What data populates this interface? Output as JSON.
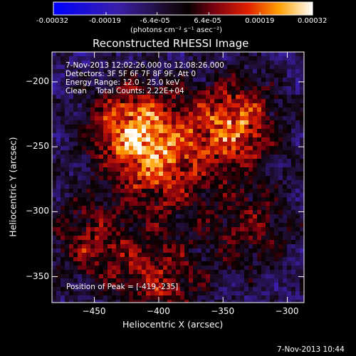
{
  "colorbar": {
    "tick_labels": [
      "-0.00032",
      "-0.00019",
      "-6.4e-05",
      "6.4e-05",
      "0.00019",
      "0.00032"
    ],
    "units_label": "(photons cm⁻² s⁻¹ asec⁻²)",
    "range": [
      -0.00032,
      0.00032
    ]
  },
  "chart_data": {
    "type": "heatmap",
    "title": "Reconstructed RHESSI Image",
    "xlabel": "Heliocentric X (arcsec)",
    "ylabel": "Heliocentric Y (arcsec)",
    "xlim": [
      -483,
      -287
    ],
    "ylim": [
      -370,
      -177
    ],
    "x_ticks": [
      -450,
      -400,
      -350,
      -300
    ],
    "y_ticks": [
      -200,
      -250,
      -300,
      -350
    ],
    "colormap": "blue-black-red-yellow-white",
    "color_range": [
      -0.00032,
      0.00032
    ],
    "sources": [
      {
        "x": -420,
        "y": -235,
        "amplitude": 0.00032
      },
      {
        "x": -345,
        "y": -232,
        "amplitude": 0.00028
      },
      {
        "x": -395,
        "y": -270,
        "amplitude": 0.00018
      },
      {
        "x": -455,
        "y": -320,
        "amplitude": 0.00016
      },
      {
        "x": -330,
        "y": -310,
        "amplitude": 0.00014
      },
      {
        "x": -400,
        "y": -350,
        "amplitude": 0.00018
      }
    ],
    "annotations": [
      "7-Nov-2013 12:02:26.000 to 12:08:26.000",
      "Detectors: 3F 5F 6F 7F 8F 9F, Att 0",
      "Energy Range: 12.0 - 25.0 keV",
      "Clean    Total Counts: 2.22E+04",
      "Position of Peak = [-419,-235]"
    ]
  },
  "footer": {
    "timestamp": "7-Nov-2013 10:44"
  }
}
